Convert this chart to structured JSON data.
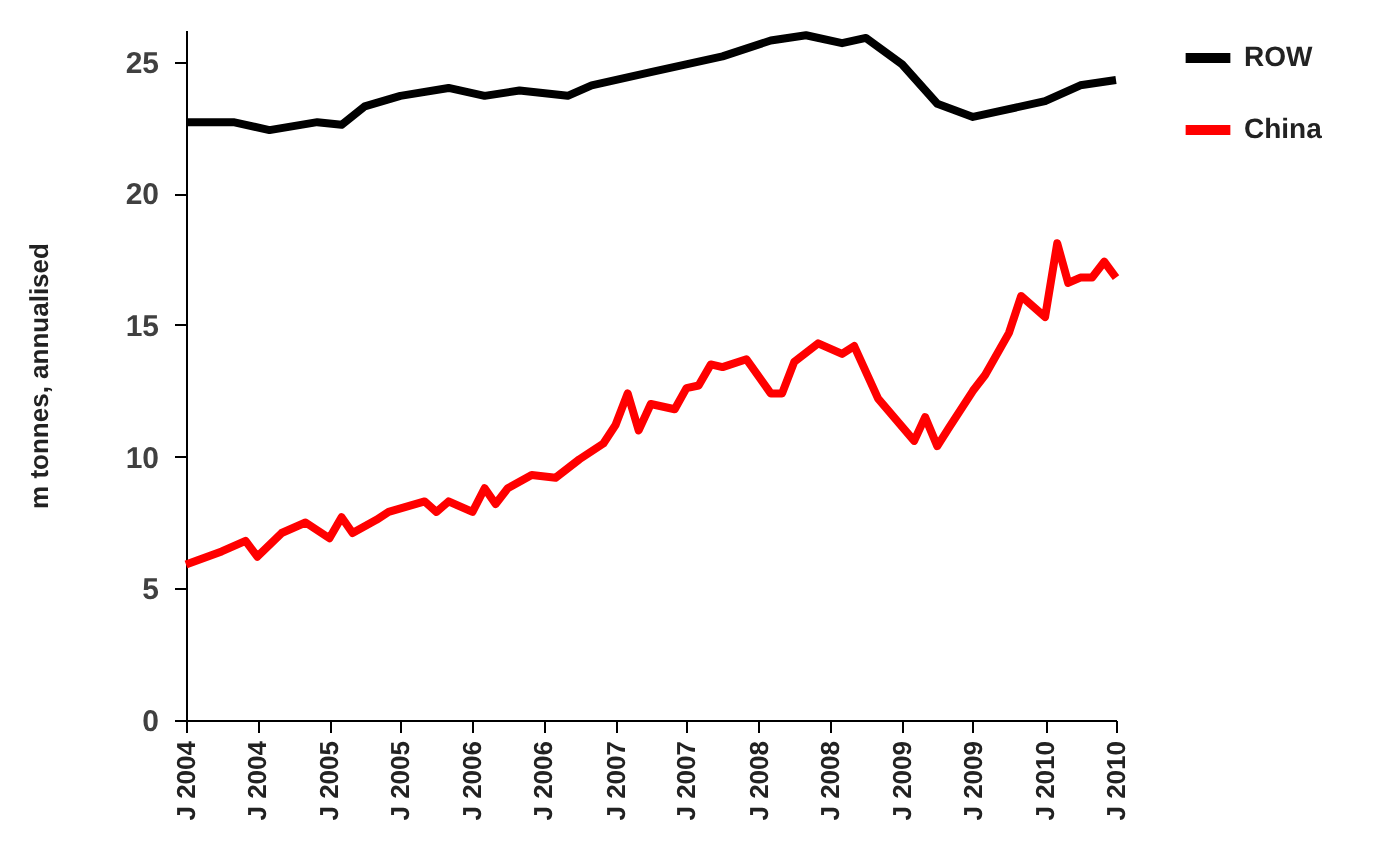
{
  "chart_data": {
    "type": "line",
    "ylabel": "m tonnes, annualised",
    "legend": "right",
    "ylim": [
      0,
      26.2
    ],
    "yticks": [
      0,
      5,
      10,
      15,
      20,
      25
    ],
    "xlim": [
      "2004-01",
      "2010-07"
    ],
    "xticks": [
      {
        "value": "2004-01",
        "label": "J 2004"
      },
      {
        "value": "2004-07",
        "label": "J 2004"
      },
      {
        "value": "2005-01",
        "label": "J 2005"
      },
      {
        "value": "2005-07",
        "label": "J 2005"
      },
      {
        "value": "2006-01",
        "label": "J 2006"
      },
      {
        "value": "2006-07",
        "label": "J 2006"
      },
      {
        "value": "2007-01",
        "label": "J 2007"
      },
      {
        "value": "2007-07",
        "label": "J 2007"
      },
      {
        "value": "2008-01",
        "label": "J 2008"
      },
      {
        "value": "2008-07",
        "label": "J 2008"
      },
      {
        "value": "2009-01",
        "label": "J 2009"
      },
      {
        "value": "2009-07",
        "label": "J 2009"
      },
      {
        "value": "2010-01",
        "label": "J 2010"
      },
      {
        "value": "2010-07",
        "label": "J 2010"
      }
    ],
    "series": [
      {
        "name": "ROW",
        "color": "#000000",
        "x": [
          "2004-01",
          "2004-05",
          "2004-08",
          "2004-12",
          "2005-02",
          "2005-04",
          "2005-07",
          "2005-11",
          "2006-02",
          "2006-05",
          "2006-09",
          "2006-11",
          "2007-04",
          "2007-10",
          "2008-02",
          "2008-05",
          "2008-08",
          "2008-10",
          "2009-01",
          "2009-04",
          "2009-07",
          "2010-01",
          "2010-04",
          "2010-07"
        ],
        "values": [
          22.7,
          22.7,
          22.4,
          22.7,
          22.6,
          23.3,
          23.7,
          24.0,
          23.7,
          23.9,
          23.7,
          24.1,
          24.6,
          25.2,
          25.8,
          26.0,
          25.7,
          25.9,
          24.9,
          23.4,
          22.9,
          23.5,
          24.1,
          24.3
        ]
      },
      {
        "name": "China",
        "color": "#ff0000",
        "x": [
          "2004-01",
          "2004-04",
          "2004-06",
          "2004-07",
          "2004-09",
          "2004-11",
          "2005-01",
          "2005-02",
          "2005-03",
          "2005-05",
          "2005-06",
          "2005-09",
          "2005-10",
          "2005-11",
          "2006-01",
          "2006-02",
          "2006-03",
          "2006-04",
          "2006-06",
          "2006-08",
          "2006-10",
          "2006-12",
          "2007-01",
          "2007-02",
          "2007-03",
          "2007-04",
          "2007-06",
          "2007-07",
          "2007-08",
          "2007-09",
          "2007-10",
          "2007-12",
          "2008-02",
          "2008-03",
          "2008-04",
          "2008-06",
          "2008-08",
          "2008-09",
          "2008-11",
          "2009-02",
          "2009-03",
          "2009-04",
          "2009-05",
          "2009-07",
          "2009-08",
          "2009-10",
          "2009-11",
          "2010-01",
          "2010-02",
          "2010-03",
          "2010-04",
          "2010-05",
          "2010-06",
          "2010-07"
        ],
        "values": [
          5.9,
          6.4,
          6.8,
          6.2,
          7.1,
          7.5,
          6.9,
          7.7,
          7.1,
          7.6,
          7.9,
          8.3,
          7.9,
          8.3,
          7.9,
          8.8,
          8.2,
          8.8,
          9.3,
          9.2,
          9.9,
          10.5,
          11.2,
          12.4,
          11.0,
          12.0,
          11.8,
          12.6,
          12.7,
          13.5,
          13.4,
          13.7,
          12.4,
          12.4,
          13.6,
          14.3,
          13.9,
          14.2,
          12.2,
          10.6,
          11.5,
          10.4,
          11.1,
          12.5,
          13.1,
          14.7,
          16.1,
          15.3,
          18.1,
          16.6,
          16.8,
          16.8,
          17.4,
          16.8
        ]
      }
    ]
  }
}
